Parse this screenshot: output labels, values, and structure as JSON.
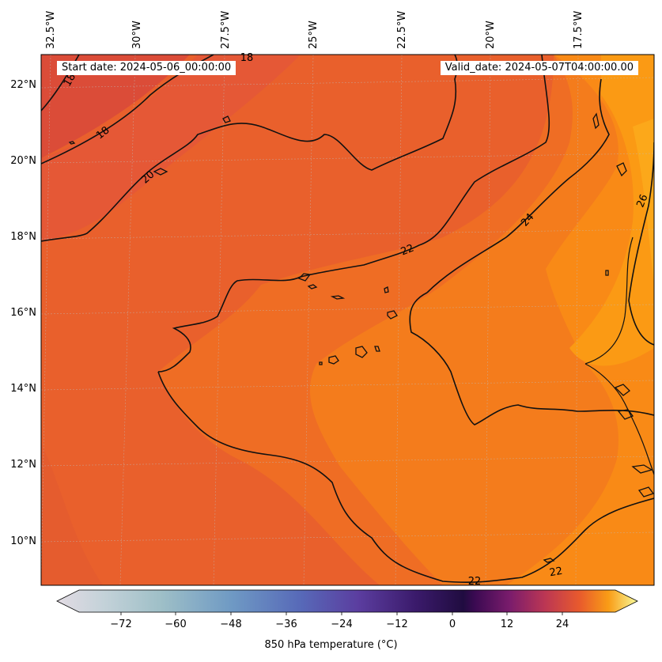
{
  "header": {
    "start_date": "Start date: 2024-05-06_00:00:00",
    "valid_date": "Valid_date: 2024-05-07T04:00:00.00"
  },
  "map": {
    "lon_labels": [
      "32.5°W",
      "30°W",
      "27.5°W",
      "25°W",
      "22.5°W",
      "20°W",
      "17.5°W"
    ],
    "lat_labels": [
      "22°N",
      "20°N",
      "18°N",
      "16°N",
      "14°N",
      "12°N",
      "10°N"
    ],
    "contour_labels": [
      "18",
      "18",
      "20",
      "22",
      "24",
      "26",
      "22",
      "22",
      "18"
    ]
  },
  "colorbar": {
    "label": "850 hPa temperature (°C)",
    "ticks": [
      "−72",
      "−60",
      "−48",
      "−36",
      "−24",
      "−12",
      "0",
      "12",
      "24"
    ],
    "colormap": "inferno-like diverging with blue-grey negative side"
  },
  "colors": {
    "field_cool": "#e4572f",
    "field_mid": "#f4781f",
    "field_warm": "#fb9616",
    "field_hot": "#fdab1a",
    "coast": "#000000"
  }
}
